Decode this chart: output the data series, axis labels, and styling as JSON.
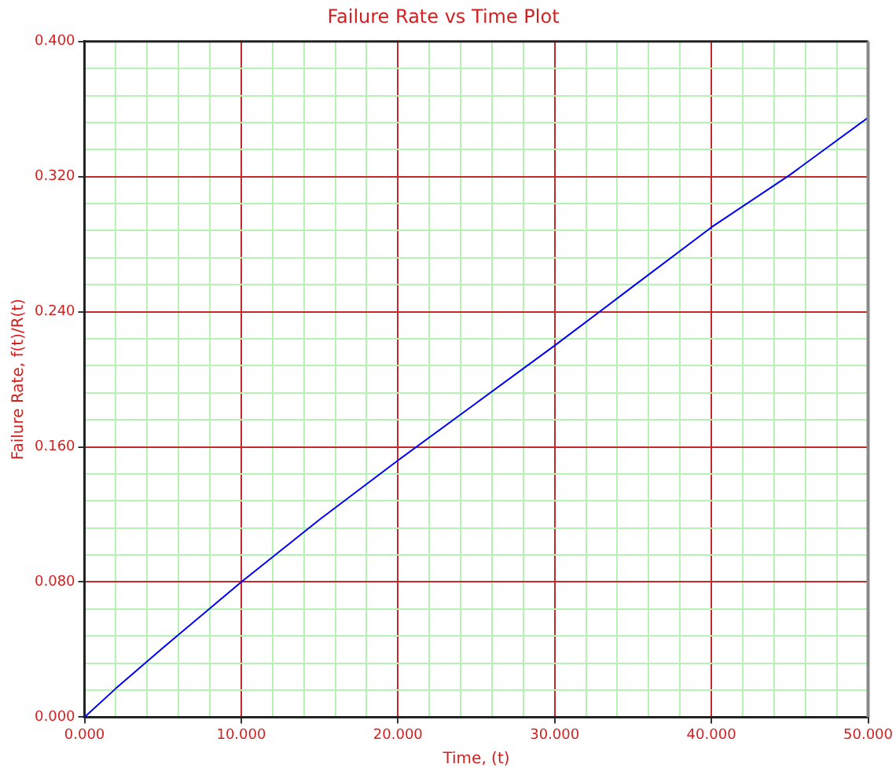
{
  "chart_data": {
    "type": "line",
    "title": "Failure Rate vs Time Plot",
    "xlabel": "Time, (t)",
    "ylabel": "Failure Rate, f(t)/R(t)",
    "x": [
      0,
      2,
      5,
      10,
      15,
      20,
      25,
      30,
      35,
      40,
      45,
      50
    ],
    "series": [
      {
        "color": "#0000ff",
        "values": [
          0,
          0.017,
          0.041,
          0.08,
          0.117,
          0.152,
          0.186,
          0.22,
          0.255,
          0.29,
          0.321,
          0.355
        ]
      }
    ],
    "xlim": [
      0,
      50
    ],
    "xticks": [
      {
        "value": 0,
        "label": "0.000"
      },
      {
        "value": 2,
        "label": null
      },
      {
        "value": 4,
        "label": null
      },
      {
        "value": 6,
        "label": null
      },
      {
        "value": 8,
        "label": null
      },
      {
        "value": 10,
        "label": "10.000"
      },
      {
        "value": 12,
        "label": null
      },
      {
        "value": 14,
        "label": null
      },
      {
        "value": 16,
        "label": null
      },
      {
        "value": 18,
        "label": null
      },
      {
        "value": 20,
        "label": "20.000"
      },
      {
        "value": 22,
        "label": null
      },
      {
        "value": 24,
        "label": null
      },
      {
        "value": 26,
        "label": null
      },
      {
        "value": 28,
        "label": null
      },
      {
        "value": 30,
        "label": "30.000"
      },
      {
        "value": 32,
        "label": null
      },
      {
        "value": 34,
        "label": null
      },
      {
        "value": 36,
        "label": null
      },
      {
        "value": 38,
        "label": null
      },
      {
        "value": 40,
        "label": "40.000"
      },
      {
        "value": 42,
        "label": null
      },
      {
        "value": 44,
        "label": null
      },
      {
        "value": 46,
        "label": null
      },
      {
        "value": 48,
        "label": null
      },
      {
        "value": 50,
        "label": "50.000"
      }
    ],
    "ylim": [
      0,
      0.4
    ],
    "yticks": [
      {
        "value": 0,
        "label": "0.000"
      },
      {
        "value": 0.016,
        "label": null
      },
      {
        "value": 0.032,
        "label": null
      },
      {
        "value": 0.048,
        "label": null
      },
      {
        "value": 0.064,
        "label": null
      },
      {
        "value": 0.08,
        "label": "0.080"
      },
      {
        "value": 0.096,
        "label": null
      },
      {
        "value": 0.112,
        "label": null
      },
      {
        "value": 0.128,
        "label": null
      },
      {
        "value": 0.144,
        "label": null
      },
      {
        "value": 0.16,
        "label": "0.160"
      },
      {
        "value": 0.176,
        "label": null
      },
      {
        "value": 0.192,
        "label": null
      },
      {
        "value": 0.208,
        "label": null
      },
      {
        "value": 0.224,
        "label": null
      },
      {
        "value": 0.24,
        "label": "0.240"
      },
      {
        "value": 0.256,
        "label": null
      },
      {
        "value": 0.272,
        "label": null
      },
      {
        "value": 0.288,
        "label": null
      },
      {
        "value": 0.304,
        "label": null
      },
      {
        "value": 0.32,
        "label": "0.320"
      },
      {
        "value": 0.336,
        "label": null
      },
      {
        "value": 0.352,
        "label": null
      },
      {
        "value": 0.368,
        "label": null
      },
      {
        "value": 0.384,
        "label": null
      },
      {
        "value": 0.4,
        "label": "0.400"
      }
    ],
    "grid": true,
    "legend": false,
    "marker": "none",
    "line_style": "solid"
  }
}
